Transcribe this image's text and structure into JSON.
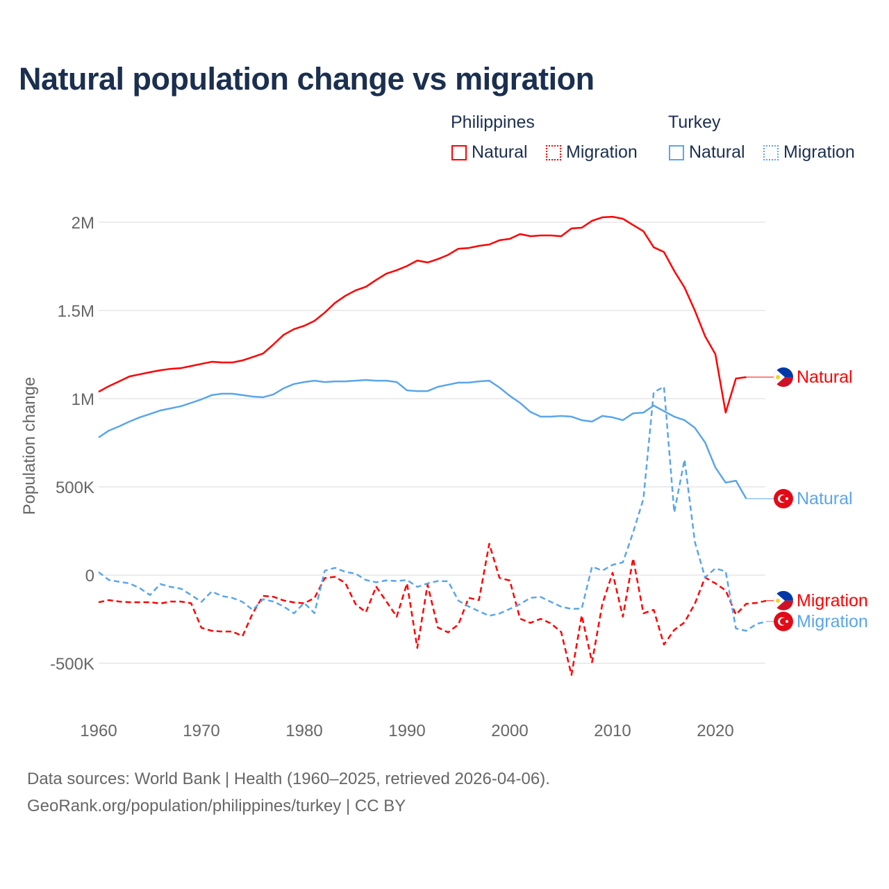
{
  "title": "Natural population change vs migration",
  "legend": {
    "groups": [
      {
        "name": "Philippines",
        "color": "#ff0000",
        "items": [
          "Natural",
          "Migration"
        ]
      },
      {
        "name": "Turkey",
        "color": "#5aa5ea",
        "items": [
          "Natural",
          "Migration"
        ]
      }
    ]
  },
  "footer": {
    "line1": "Data sources: World Bank | Health (1960–2025, retrieved 2026-04-06).",
    "line2": "GeoRank.org/population/philippines/turkey | CC BY"
  },
  "chart_data": {
    "type": "line",
    "title": "Natural population change vs migration",
    "xlabel": "",
    "ylabel": "Population change",
    "xlim": [
      1960,
      2025
    ],
    "ylim": [
      -600000,
      2100000
    ],
    "x_ticks": [
      1960,
      1970,
      1980,
      1990,
      2000,
      2010,
      2020
    ],
    "x_tick_labels": [
      "1960",
      "1970",
      "1980",
      "1990",
      "2000",
      "2010",
      "2020"
    ],
    "y_ticks": [
      -500000,
      0,
      500000,
      1000000,
      1500000,
      2000000
    ],
    "y_tick_labels": [
      "-500K",
      "0",
      "500K",
      "1M",
      "1.5M",
      "2M"
    ],
    "grid": true,
    "legend_position": "top-right",
    "series": [
      {
        "name": "Philippines Natural",
        "end_label": "Natural",
        "country": "Philippines",
        "color": "#ff0000",
        "dash": false,
        "start_year": 1960,
        "values": [
          1039000,
          1071000,
          1098000,
          1126000,
          1138000,
          1150000,
          1161000,
          1169000,
          1173000,
          1185000,
          1197000,
          1209000,
          1205000,
          1205000,
          1217000,
          1236000,
          1256000,
          1307000,
          1362000,
          1394000,
          1413000,
          1441000,
          1488000,
          1543000,
          1583000,
          1614000,
          1634000,
          1673000,
          1709000,
          1728000,
          1752000,
          1783000,
          1772000,
          1791000,
          1815000,
          1850000,
          1854000,
          1866000,
          1874000,
          1898000,
          1906000,
          1933000,
          1921000,
          1925000,
          1925000,
          1921000,
          1965000,
          1969000,
          2008000,
          2028000,
          2031000,
          2020000,
          1984000,
          1949000,
          1858000,
          1831000,
          1724000,
          1630000,
          1500000,
          1354000,
          1252000,
          921000,
          1114000,
          1122000
        ]
      },
      {
        "name": "Philippines Migration",
        "end_label": "Migration",
        "country": "Philippines",
        "color": "#ff0000",
        "dash": true,
        "start_year": 1960,
        "values": [
          -154000,
          -142000,
          -150000,
          -154000,
          -154000,
          -154000,
          -161000,
          -150000,
          -150000,
          -160000,
          -299000,
          -316000,
          -320000,
          -320000,
          -346000,
          -215000,
          -118000,
          -123000,
          -144000,
          -155000,
          -160000,
          -130000,
          -17000,
          -10000,
          -45000,
          -165000,
          -211000,
          -66000,
          -150000,
          -236000,
          -47000,
          -413000,
          -54000,
          -297000,
          -325000,
          -280000,
          -129000,
          -142000,
          177000,
          -16000,
          -31000,
          -247000,
          -271000,
          -248000,
          -274000,
          -323000,
          -566000,
          -228000,
          -494000,
          -165000,
          13000,
          -236000,
          95000,
          -217000,
          -197000,
          -394000,
          -311000,
          -268000,
          -163000,
          -14000,
          -47000,
          -87000,
          -224000,
          -163000,
          -158000,
          -145000
        ]
      },
      {
        "name": "Turkey Natural",
        "end_label": "Natural",
        "country": "Turkey",
        "color": "#5aa5ea",
        "dash": false,
        "start_year": 1960,
        "values": [
          780000,
          819000,
          843000,
          870000,
          894000,
          913000,
          933000,
          945000,
          957000,
          976000,
          996000,
          1020000,
          1028000,
          1028000,
          1020000,
          1012000,
          1008000,
          1024000,
          1059000,
          1083000,
          1094000,
          1102000,
          1094000,
          1098000,
          1098000,
          1102000,
          1106000,
          1102000,
          1102000,
          1094000,
          1047000,
          1043000,
          1043000,
          1067000,
          1079000,
          1091000,
          1091000,
          1098000,
          1102000,
          1063000,
          1016000,
          976000,
          925000,
          898000,
          898000,
          902000,
          898000,
          878000,
          870000,
          902000,
          894000,
          878000,
          917000,
          921000,
          961000,
          929000,
          898000,
          878000,
          835000,
          752000,
          610000,
          524000,
          535000,
          433000
        ]
      },
      {
        "name": "Turkey Migration",
        "end_label": "Migration",
        "country": "Turkey",
        "color": "#5aa5ea",
        "dash": true,
        "start_year": 1960,
        "values": [
          17000,
          -28000,
          -38000,
          -47000,
          -74000,
          -113000,
          -51000,
          -67000,
          -77000,
          -113000,
          -152000,
          -93000,
          -119000,
          -129000,
          -152000,
          -198000,
          -137000,
          -150000,
          -178000,
          -217000,
          -158000,
          -216000,
          25000,
          41000,
          18000,
          8000,
          -28000,
          -41000,
          -30000,
          -34000,
          -28000,
          -67000,
          -47000,
          -34000,
          -35000,
          -145000,
          -178000,
          -205000,
          -231000,
          -218000,
          -192000,
          -165000,
          -129000,
          -124000,
          -152000,
          -179000,
          -192000,
          -190000,
          48000,
          25000,
          58000,
          72000,
          242000,
          432000,
          1036000,
          1068000,
          355000,
          655000,
          189000,
          -14000,
          38000,
          21000,
          -303000,
          -316000,
          -277000,
          -263000
        ]
      }
    ]
  }
}
